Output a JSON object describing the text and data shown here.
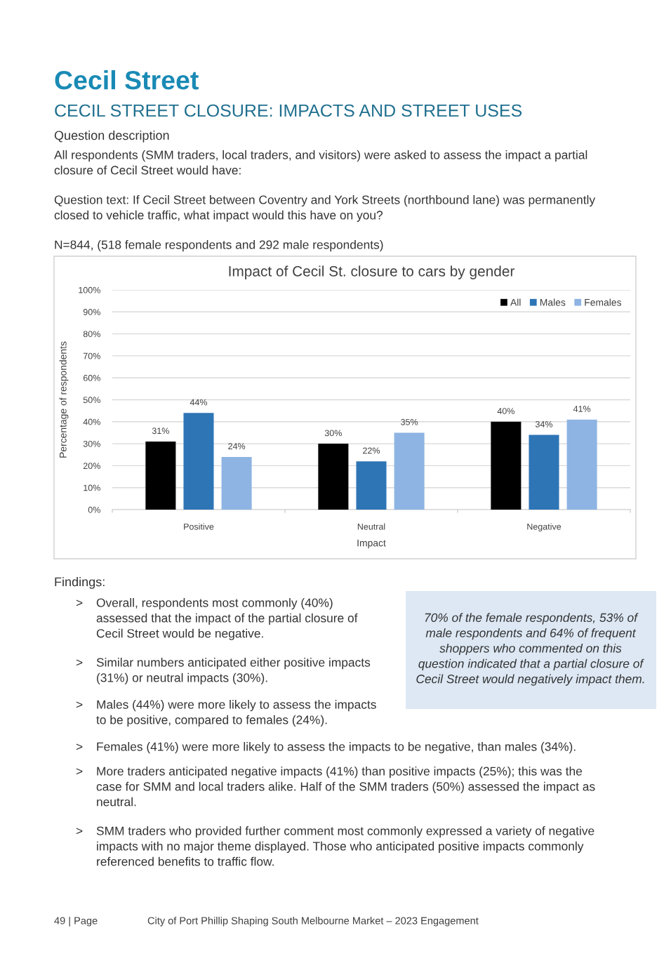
{
  "chart_data": {
    "type": "bar",
    "title": "Impact of Cecil St. closure to cars by gender",
    "xlabel": "Impact",
    "ylabel": "Percentage of respondents",
    "categories": [
      "Positive",
      "Neutral",
      "Negative"
    ],
    "series": [
      {
        "name": "All",
        "color": "#000000",
        "values": [
          31,
          30,
          40
        ],
        "value_labels": [
          "31%",
          "30%",
          "40%"
        ]
      },
      {
        "name": "Males",
        "color": "#2e75b6",
        "values": [
          44,
          22,
          34
        ],
        "value_labels": [
          "44%",
          "22%",
          "34%"
        ]
      },
      {
        "name": "Females",
        "color": "#8eb4e3",
        "values": [
          24,
          35,
          41
        ],
        "value_labels": [
          "24%",
          "35%",
          "41%"
        ]
      }
    ],
    "ylim": [
      0,
      100
    ],
    "yticks": [
      {
        "value": 0,
        "label": "0%"
      },
      {
        "value": 10,
        "label": "10%"
      },
      {
        "value": 20,
        "label": "20%"
      },
      {
        "value": 30,
        "label": "30%"
      },
      {
        "value": 40,
        "label": "40%"
      },
      {
        "value": 50,
        "label": "50%"
      },
      {
        "value": 60,
        "label": "60%"
      },
      {
        "value": 70,
        "label": "70%"
      },
      {
        "value": 80,
        "label": "80%"
      },
      {
        "value": 90,
        "label": "90%"
      },
      {
        "value": 100,
        "label": "100%"
      }
    ],
    "grid": "y",
    "legend": "top right",
    "annotations": [
      "Cecil Street",
      "CECIL STREET CLOSURE: IMPACTS AND STREET USES",
      "Question description",
      "All respondents (SMM traders, local traders, and visitors) were asked to assess the impact a partial\nclosure of Cecil Street would have:",
      "Question text: If Cecil Street between Coventry and York Streets (northbound lane) was permanently\nclosed to vehicle traffic, what impact would this have on you?",
      "N=844, (518 female respondents and 292 male respondents)",
      "Findings:",
      "> Overall, respondents most commonly (40%)\nassessed that the impact of the partial closure of\nCecil Street would be negative.",
      "> Similar numbers anticipated either positive impacts\n(31%) or neutral impacts (30%).",
      "> Males (44%) were more likely to assess the impacts\nto be positive, compared to females (24%).",
      "> Females (41%) were more likely to assess the impacts to be negative, than males (34%).",
      "> More traders anticipated negative impacts (41%) than positive impacts (25%); this was the\ncase for SMM and local traders alike. Half of the SMM traders (50%) assessed the impact as\nneutral.",
      "> SMM traders who provided further comment most commonly expressed a variety of negative\nimpacts with no major theme displayed. Those who anticipated positive impacts commonly\nreferenced benefits to traffic flow.",
      "70% of the female respondents, 53% of\nmale respondents and 64% of frequent\nshoppers who commented on this\nquestion indicated that a partial closure of\nCecil Street would negatively impact them.",
      "49 | Page",
      "City of Port Phillip Shaping South Melbourne Market – 2023 Engagement"
    ]
  }
}
